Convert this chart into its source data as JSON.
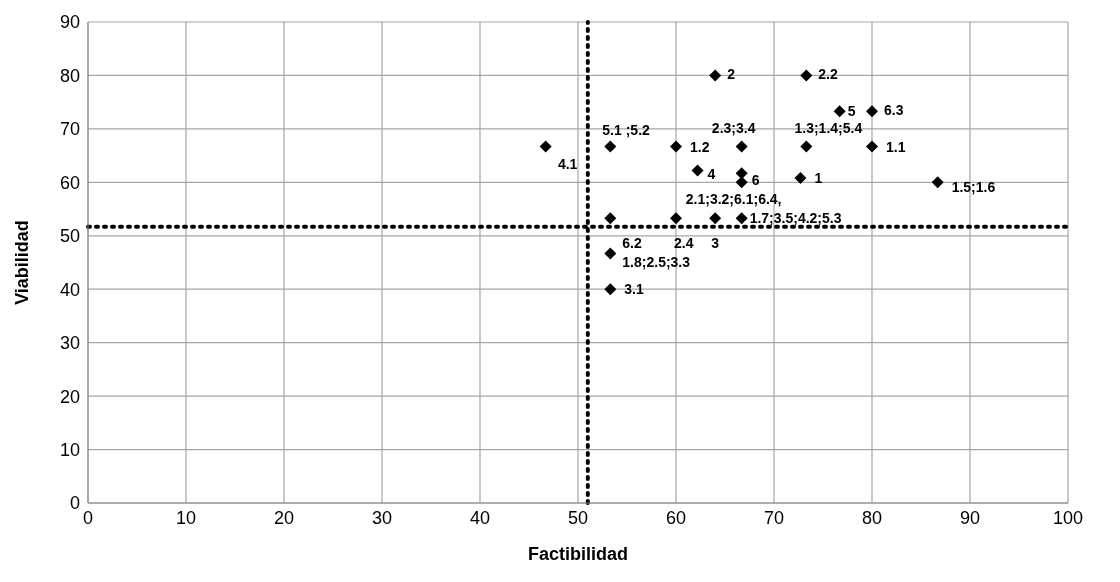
{
  "chart_data": {
    "type": "scatter",
    "xlabel": "Factibilidad",
    "ylabel": "Viabilidad",
    "x": [
      64,
      73.3,
      76.7,
      80,
      53.3,
      66.7,
      73.3,
      60,
      80,
      46.7,
      62.2,
      66.7,
      72.7,
      66.7,
      86.7,
      53.3,
      60,
      64,
      66.7,
      53.3,
      53.3
    ],
    "series": [
      {
        "color": "#000000",
        "values": [
          80,
          80,
          73.3,
          73.3,
          66.7,
          66.7,
          66.7,
          66.7,
          66.7,
          66.7,
          62.2,
          61.7,
          60.8,
          60,
          60,
          53.3,
          53.3,
          53.3,
          53.3,
          46.7,
          40
        ]
      }
    ],
    "marker": "diamond",
    "xlim": [
      0,
      100
    ],
    "xticks": [
      0,
      10,
      20,
      30,
      40,
      50,
      60,
      70,
      80,
      90,
      100
    ],
    "ylim": [
      0,
      90
    ],
    "yticks": [
      0,
      10,
      20,
      30,
      40,
      50,
      60,
      70,
      80,
      90
    ],
    "grid": true,
    "ref_lines": [
      {
        "axis": "x",
        "value": 51,
        "color": "#000000",
        "line_style": "dotted"
      },
      {
        "axis": "y",
        "value": 51.7,
        "color": "#000000",
        "line_style": "dotted"
      }
    ],
    "annotations": [
      {
        "text": "2",
        "x": 64,
        "y": 80
      },
      {
        "text": "2.2",
        "x": 73.3,
        "y": 80
      },
      {
        "text": "5",
        "x": 76.7,
        "y": 73.3
      },
      {
        "text": "6.3",
        "x": 80,
        "y": 73.3
      },
      {
        "text": "5.1 ;5.2",
        "x": 53.3,
        "y": 66.7
      },
      {
        "text": "2.3;3.4",
        "x": 66.7,
        "y": 66.7
      },
      {
        "text": "1.3;1.4;5.4",
        "x": 73.3,
        "y": 66.7
      },
      {
        "text": "1.2",
        "x": 60,
        "y": 66.7
      },
      {
        "text": "1.1",
        "x": 80,
        "y": 66.7
      },
      {
        "text": "4.1",
        "x": 46.7,
        "y": 66.7
      },
      {
        "text": "4",
        "x": 62.2,
        "y": 62.2
      },
      {
        "text": "6",
        "x": 66.7,
        "y": 61.7
      },
      {
        "text": "1",
        "x": 72.7,
        "y": 60.8
      },
      {
        "text": "2.1;3.2;6.1;6.4,",
        "x": 66.7,
        "y": 60
      },
      {
        "text": "1.5;1.6",
        "x": 86.7,
        "y": 60
      },
      {
        "text": "6.2",
        "x": 53.3,
        "y": 53.3
      },
      {
        "text": "2.4",
        "x": 60,
        "y": 53.3
      },
      {
        "text": "3",
        "x": 64,
        "y": 53.3
      },
      {
        "text": "1.7;3.5;4.2;5.3",
        "x": 66.7,
        "y": 53.3
      },
      {
        "text": "1.8;2.5;3.3",
        "x": 53.3,
        "y": 46.7
      },
      {
        "text": "3.1",
        "x": 53.3,
        "y": 40
      }
    ]
  }
}
